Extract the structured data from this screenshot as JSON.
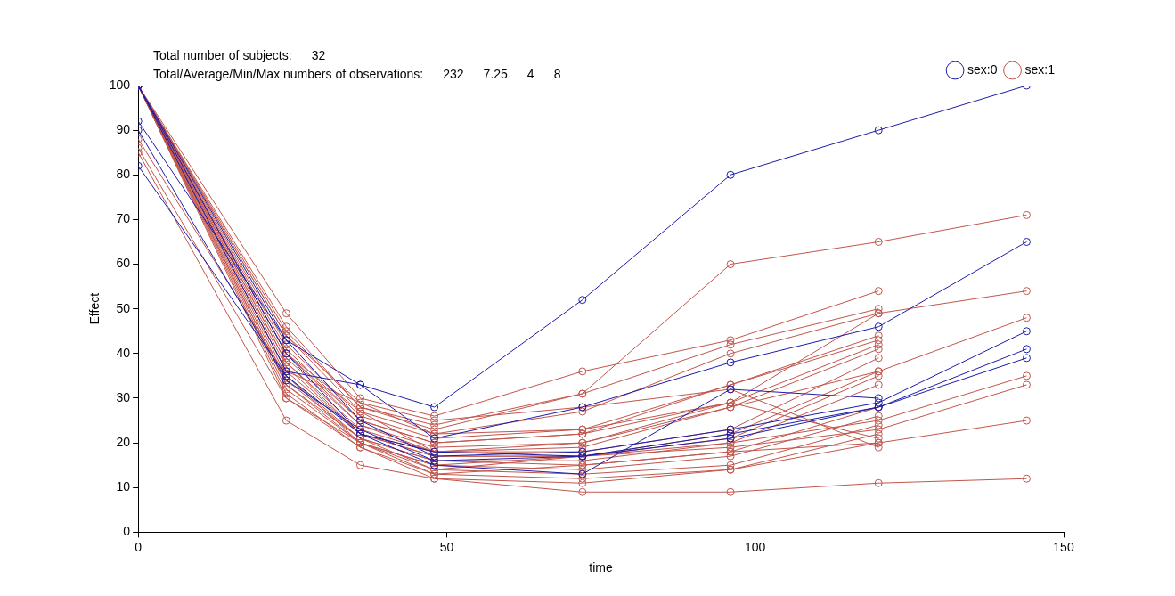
{
  "chart_data": {
    "type": "line",
    "annotations": [
      {
        "label": "Total number of subjects:",
        "values": [
          32
        ]
      },
      {
        "label": "Total/Average/Min/Max numbers of observations:",
        "values": [
          232,
          7.25,
          4,
          8
        ]
      }
    ],
    "x_label": "time",
    "y_label": "Effect",
    "x": [
      0,
      24,
      36,
      48,
      72,
      96,
      120,
      144
    ],
    "xlim": [
      0,
      150
    ],
    "xticks": [
      0,
      50,
      100,
      150
    ],
    "ylim": [
      0,
      100
    ],
    "yticks": [
      0,
      10,
      20,
      30,
      40,
      50,
      60,
      70,
      80,
      90,
      100
    ],
    "grid": false,
    "legend": "top right",
    "marker": "circle",
    "line_style": "solid",
    "series": [
      {
        "name": "sex:0",
        "color": "#1c1caa",
        "values": [
          [
            92,
            43,
            33,
            28,
            52,
            80,
            90,
            100
          ],
          [
            82,
            35,
            22,
            15,
            13,
            32,
            30,
            null
          ],
          [
            100,
            36,
            33,
            21,
            28,
            38,
            46,
            65
          ],
          [
            100,
            43,
            25,
            17,
            18,
            23,
            29,
            45
          ],
          [
            90,
            34,
            23,
            16,
            17,
            21,
            28,
            41
          ],
          [
            100,
            40,
            22,
            18,
            17,
            22,
            28,
            39
          ]
        ]
      },
      {
        "name": "sex:1",
        "color": "#c2554b",
        "values": [
          [
            100,
            45,
            28,
            24,
            31,
            60,
            65,
            71
          ],
          [
            100,
            40,
            25,
            20,
            22,
            29,
            49,
            54
          ],
          [
            100,
            38,
            22,
            18,
            20,
            28,
            36,
            48
          ],
          [
            88,
            35,
            20,
            15,
            17,
            20,
            25,
            35
          ],
          [
            100,
            33,
            21,
            14,
            17,
            19,
            23,
            33
          ],
          [
            86,
            30,
            20,
            13,
            15,
            18,
            20,
            25
          ],
          [
            85,
            25,
            15,
            12,
            9,
            9,
            11,
            12
          ],
          [
            100,
            49,
            30,
            26,
            36,
            43,
            54,
            null
          ],
          [
            100,
            46,
            28,
            23,
            31,
            42,
            50,
            null
          ],
          [
            100,
            44,
            27,
            22,
            27,
            40,
            49,
            null
          ],
          [
            100,
            42,
            26,
            21,
            23,
            33,
            44,
            null
          ],
          [
            100,
            41,
            25,
            20,
            22,
            33,
            43,
            null
          ],
          [
            100,
            40,
            24,
            19,
            20,
            29,
            42,
            null
          ],
          [
            100,
            39,
            24,
            18,
            19,
            28,
            41,
            null
          ],
          [
            100,
            38,
            23,
            18,
            18,
            23,
            39,
            null
          ],
          [
            100,
            37,
            22,
            17,
            17,
            22,
            36,
            null
          ],
          [
            100,
            36,
            22,
            17,
            17,
            21,
            35,
            null
          ],
          [
            100,
            35,
            21,
            16,
            16,
            20,
            33,
            null
          ],
          [
            100,
            34,
            21,
            16,
            15,
            18,
            28,
            null
          ],
          [
            100,
            33,
            20,
            15,
            14,
            17,
            26,
            null
          ],
          [
            100,
            32,
            20,
            14,
            13,
            15,
            24,
            null
          ],
          [
            100,
            31,
            19,
            13,
            12,
            14,
            22,
            null
          ],
          [
            100,
            30,
            19,
            12,
            11,
            14,
            20,
            null
          ],
          [
            100,
            44,
            29,
            25,
            28,
            32,
            19,
            null
          ],
          [
            100,
            36,
            null,
            22,
            23,
            29,
            21,
            null
          ],
          [
            100,
            40,
            27,
            18,
            null,
            null,
            null,
            null
          ]
        ]
      }
    ]
  }
}
